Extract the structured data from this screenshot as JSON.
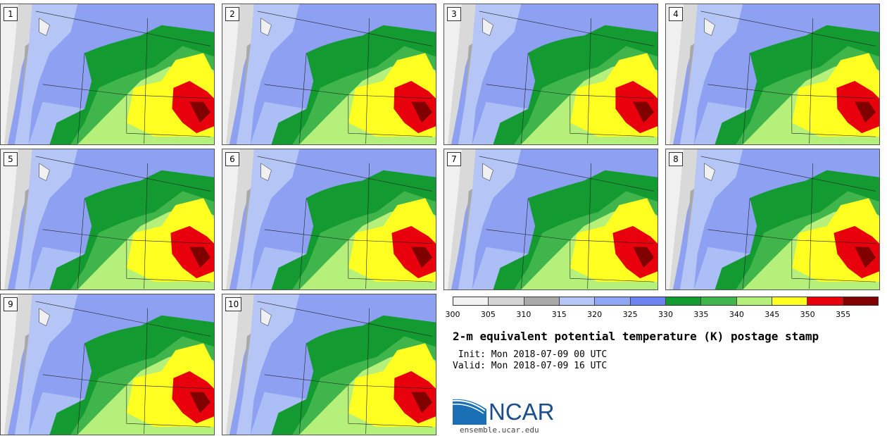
{
  "panels": [
    {
      "label": "1"
    },
    {
      "label": "2"
    },
    {
      "label": "3"
    },
    {
      "label": "4"
    },
    {
      "label": "5"
    },
    {
      "label": "6"
    },
    {
      "label": "7"
    },
    {
      "label": "8"
    },
    {
      "label": "9"
    },
    {
      "label": "10"
    }
  ],
  "colorbar": {
    "colors": [
      "#f2f2f2",
      "#d4d4d4",
      "#a9a9a9",
      "#b4c5f6",
      "#8fa5f5",
      "#6e83f2",
      "#139b32",
      "#3fb54b",
      "#b4f07a",
      "#ffff22",
      "#e8000c",
      "#800000"
    ],
    "ticks": [
      "300",
      "305",
      "310",
      "315",
      "320",
      "325",
      "330",
      "335",
      "340",
      "345",
      "350",
      "355"
    ]
  },
  "title": "2-m equivalent potential temperature (K) postage stamp",
  "init": " Init: Mon 2018-07-09 00 UTC",
  "valid": "Valid: Mon 2018-07-09 16 UTC",
  "logo": {
    "text": "NCAR",
    "site": "ensemble.ucar.edu",
    "brand_color": "#1a4f8a"
  }
}
